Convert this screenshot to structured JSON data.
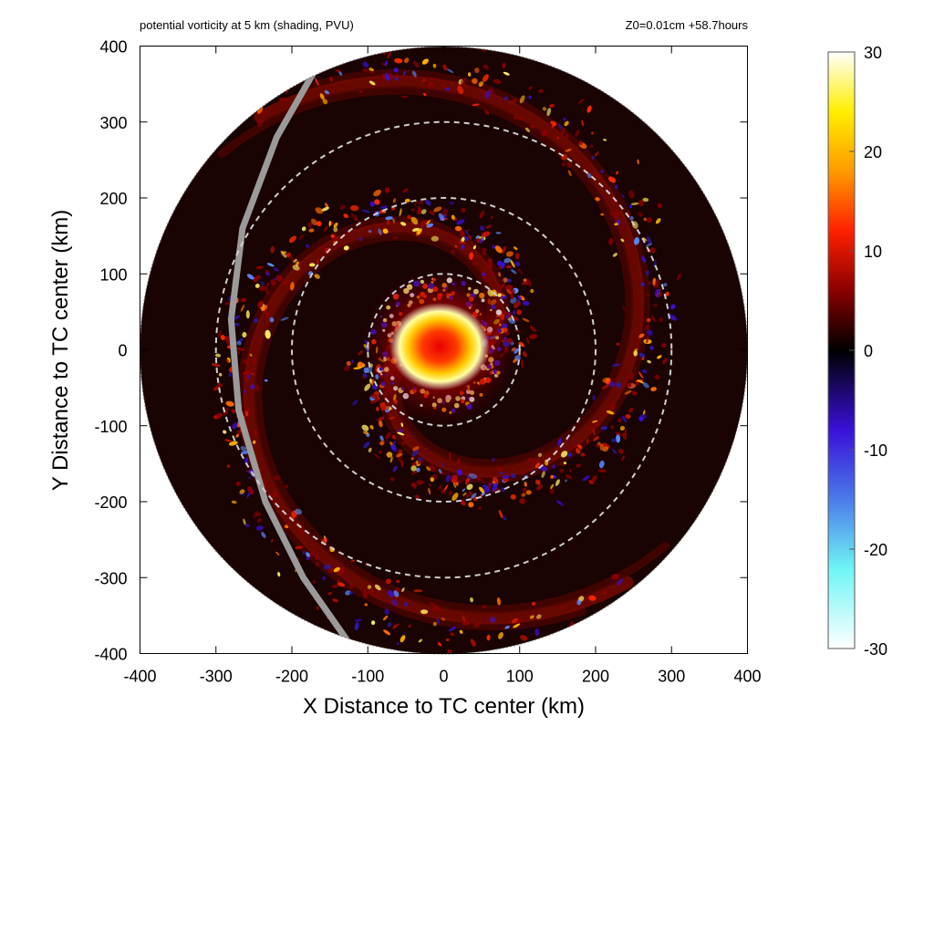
{
  "chart_data": {
    "type": "heatmap",
    "title": "potential vorticity at 5 km (shading, PVU)",
    "subtitle": "Z0=0.01cm  +58.7hours",
    "xlabel": "X Distance to TC center (km)",
    "ylabel": "Y Distance to TC center (km)",
    "xlim": [
      -400,
      400
    ],
    "ylim": [
      -400,
      400
    ],
    "x_ticks": [
      "-400",
      "-300",
      "-200",
      "-100",
      "0",
      "100",
      "200",
      "300",
      "400"
    ],
    "y_ticks": [
      "400",
      "300",
      "200",
      "100",
      "0",
      "-100",
      "-200",
      "-300",
      "-400"
    ],
    "domain_radius_km": 400,
    "range_rings_km": [
      100,
      200,
      300
    ],
    "colorbar": {
      "range": [
        -30,
        30
      ],
      "ticks": [
        "30",
        "20",
        "10",
        "0",
        "-10",
        "-20",
        "-30"
      ],
      "stops": [
        {
          "value": -30,
          "color": "#ffffff"
        },
        {
          "value": -22,
          "color": "#6ff5f5"
        },
        {
          "value": -15,
          "color": "#4b7bea"
        },
        {
          "value": -8,
          "color": "#3a10d8"
        },
        {
          "value": 0,
          "color": "#000000"
        },
        {
          "value": 6,
          "color": "#8a0000"
        },
        {
          "value": 12,
          "color": "#ff2000"
        },
        {
          "value": 18,
          "color": "#ff9a00"
        },
        {
          "value": 24,
          "color": "#ffee00"
        },
        {
          "value": 30,
          "color": "#ffffff"
        }
      ]
    },
    "features": {
      "core_center_km": [
        -5,
        5
      ],
      "core_peak_pvu": 30,
      "rainband_arms": 2,
      "grey_track_line": "curved line across western part of domain"
    }
  }
}
